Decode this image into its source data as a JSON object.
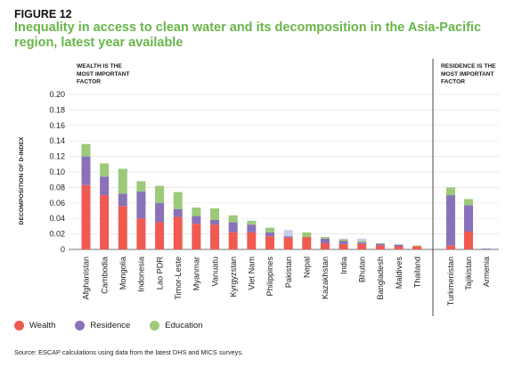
{
  "figure_label": "FIGURE 12",
  "title": "Inequality in access to clean water and its decomposition in the Asia-Pacific region, latest year available",
  "source": "Source: ESCAP calculations using data from the latest DHS and MICS surveys.",
  "colors": {
    "wealth": "#f05a50",
    "residence": "#8a72b8",
    "education": "#9cc97a",
    "other": "#c9cde6"
  },
  "chart_data": {
    "type": "bar",
    "stacked": true,
    "ylabel": "DECOMPOSITION OF D-INDEX",
    "ylim": [
      0,
      0.2
    ],
    "yticks": [
      "0",
      "0.02",
      "0.04",
      "0.06",
      "0.08",
      "0.10",
      "0.12",
      "0.14",
      "0.16",
      "0.18",
      "0.20"
    ],
    "legend_position": "bottom-left",
    "panels": [
      {
        "label_lines": [
          "WEALTH IS THE",
          "MOST IMPORTANT",
          "FACTOR"
        ],
        "categories": [
          "Afghanistan",
          "Cambodia",
          "Mongolia",
          "Indonesia",
          "Lao PDR",
          "Timor-Leste",
          "Myanmar",
          "Vanuatu",
          "Kyrgyzstan",
          "Viet Nam",
          "Philippines",
          "Pakistan",
          "Nepal",
          "Kazakhstan",
          "India",
          "Bhutan",
          "Bangladesh",
          "Maldives",
          "Thailand"
        ]
      },
      {
        "label_lines": [
          "RESIDENCE IS THE",
          "MOST IMPORTANT",
          "FACTOR"
        ],
        "categories": [
          "Turkmenistan",
          "Tajikistan",
          "Armenia"
        ]
      }
    ],
    "categories": [
      "Afghanistan",
      "Cambodia",
      "Mongolia",
      "Indonesia",
      "Lao PDR",
      "Timor-Leste",
      "Myanmar",
      "Vanuatu",
      "Kyrgyzstan",
      "Viet Nam",
      "Philippines",
      "Pakistan",
      "Nepal",
      "Kazakhstan",
      "India",
      "Bhutan",
      "Bangladesh",
      "Maldives",
      "Thailand",
      "Turkmenistan",
      "Tajikistan",
      "Armenia"
    ],
    "series": [
      {
        "name": "Wealth",
        "color_key": "wealth",
        "values": [
          0.083,
          0.07,
          0.056,
          0.04,
          0.035,
          0.042,
          0.033,
          0.032,
          0.022,
          0.022,
          0.017,
          0.015,
          0.016,
          0.008,
          0.007,
          0.007,
          0.005,
          0.004,
          0.004,
          0.005,
          0.023,
          0.0
        ]
      },
      {
        "name": "Residence",
        "color_key": "residence",
        "values": [
          0.037,
          0.024,
          0.016,
          0.035,
          0.025,
          0.01,
          0.01,
          0.006,
          0.013,
          0.01,
          0.005,
          0.002,
          0.0,
          0.006,
          0.004,
          0.002,
          0.002,
          0.002,
          0.0,
          0.065,
          0.034,
          0.001
        ]
      },
      {
        "name": "Education",
        "color_key": "education",
        "values": [
          0.016,
          0.017,
          0.032,
          0.013,
          0.022,
          0.022,
          0.011,
          0.015,
          0.009,
          0.005,
          0.006,
          0.0,
          0.006,
          0.002,
          0.002,
          0.002,
          0.001,
          0.0,
          0.001,
          0.01,
          0.008,
          0.0
        ]
      },
      {
        "name": "",
        "color_key": "other",
        "values": [
          0,
          0,
          0,
          0,
          0,
          0,
          0,
          0,
          0,
          0,
          0,
          0.008,
          0,
          0,
          0.001,
          0.003,
          0,
          0.001,
          0,
          0,
          0,
          0
        ]
      }
    ]
  }
}
